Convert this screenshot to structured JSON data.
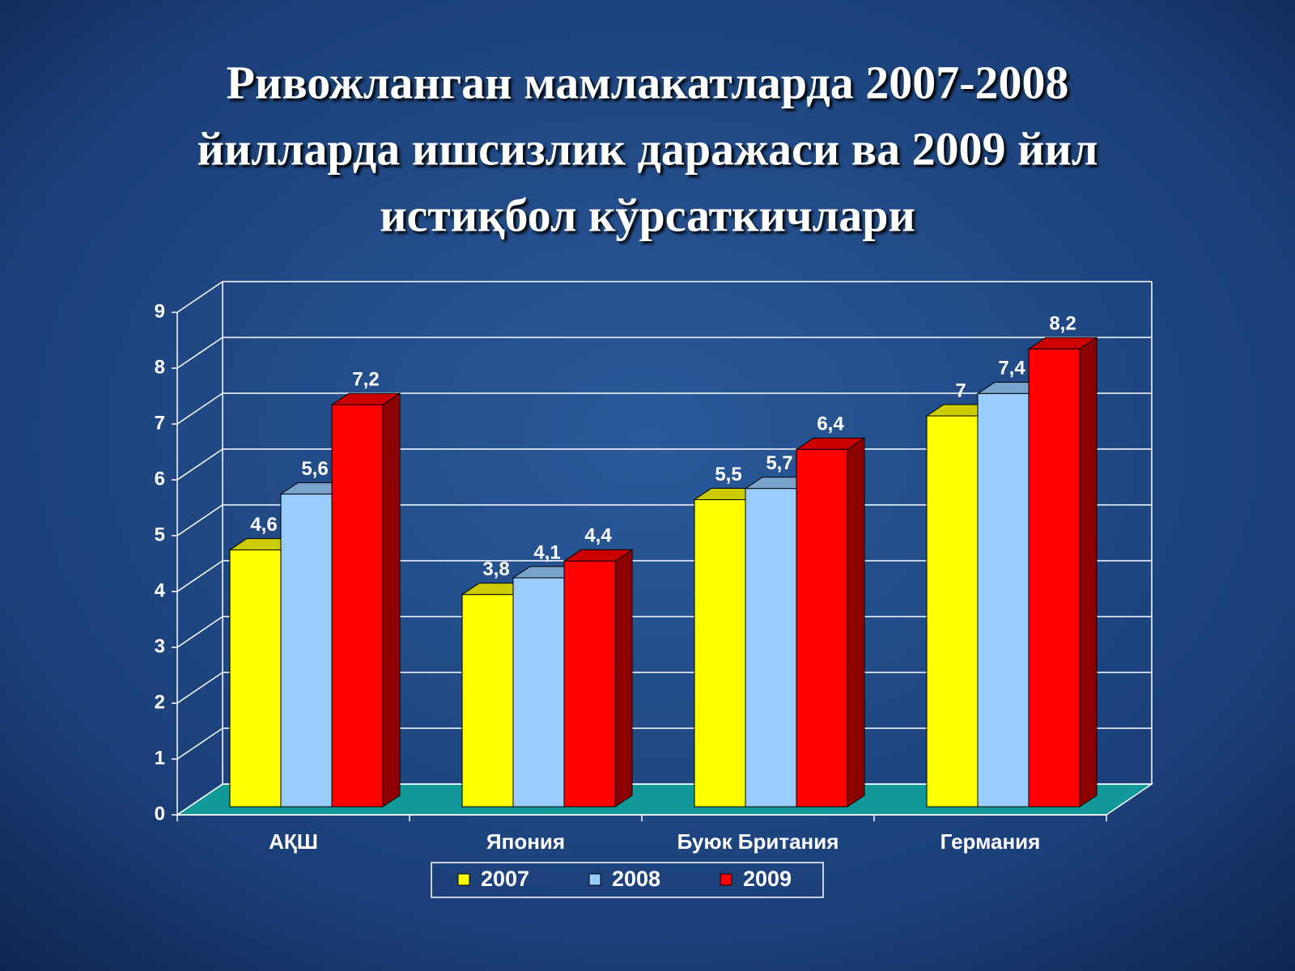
{
  "chart_data": {
    "type": "bar",
    "title": [
      "Ривожланган мамлакатларда 2007-2008",
      "йилларда ишсизлик даражаси ва 2009 йил",
      "истиқбол кўрсаткичлари"
    ],
    "categories": [
      "АҚШ",
      "Япония",
      "Буюк Британия",
      "Германия"
    ],
    "series": [
      {
        "name": "2007",
        "color": "#ffff00",
        "values": [
          4.6,
          3.8,
          5.5,
          7
        ],
        "value_labels": [
          "4,6",
          "3,8",
          "5,5",
          "7"
        ]
      },
      {
        "name": "2008",
        "color": "#99ccff",
        "values": [
          5.6,
          4.1,
          5.7,
          7.4
        ],
        "value_labels": [
          "5,6",
          "4,1",
          "5,7",
          "7,4"
        ]
      },
      {
        "name": "2009",
        "color": "#ff0000",
        "values": [
          7.2,
          4.4,
          6.4,
          8.2
        ],
        "value_labels": [
          "7,2",
          "4,4",
          "6,4",
          "8,2"
        ]
      }
    ],
    "ylim": [
      0,
      9
    ],
    "yticks": [
      0,
      1,
      2,
      3,
      4,
      5,
      6,
      7,
      8,
      9
    ],
    "grid": true,
    "legend": "bottom"
  }
}
